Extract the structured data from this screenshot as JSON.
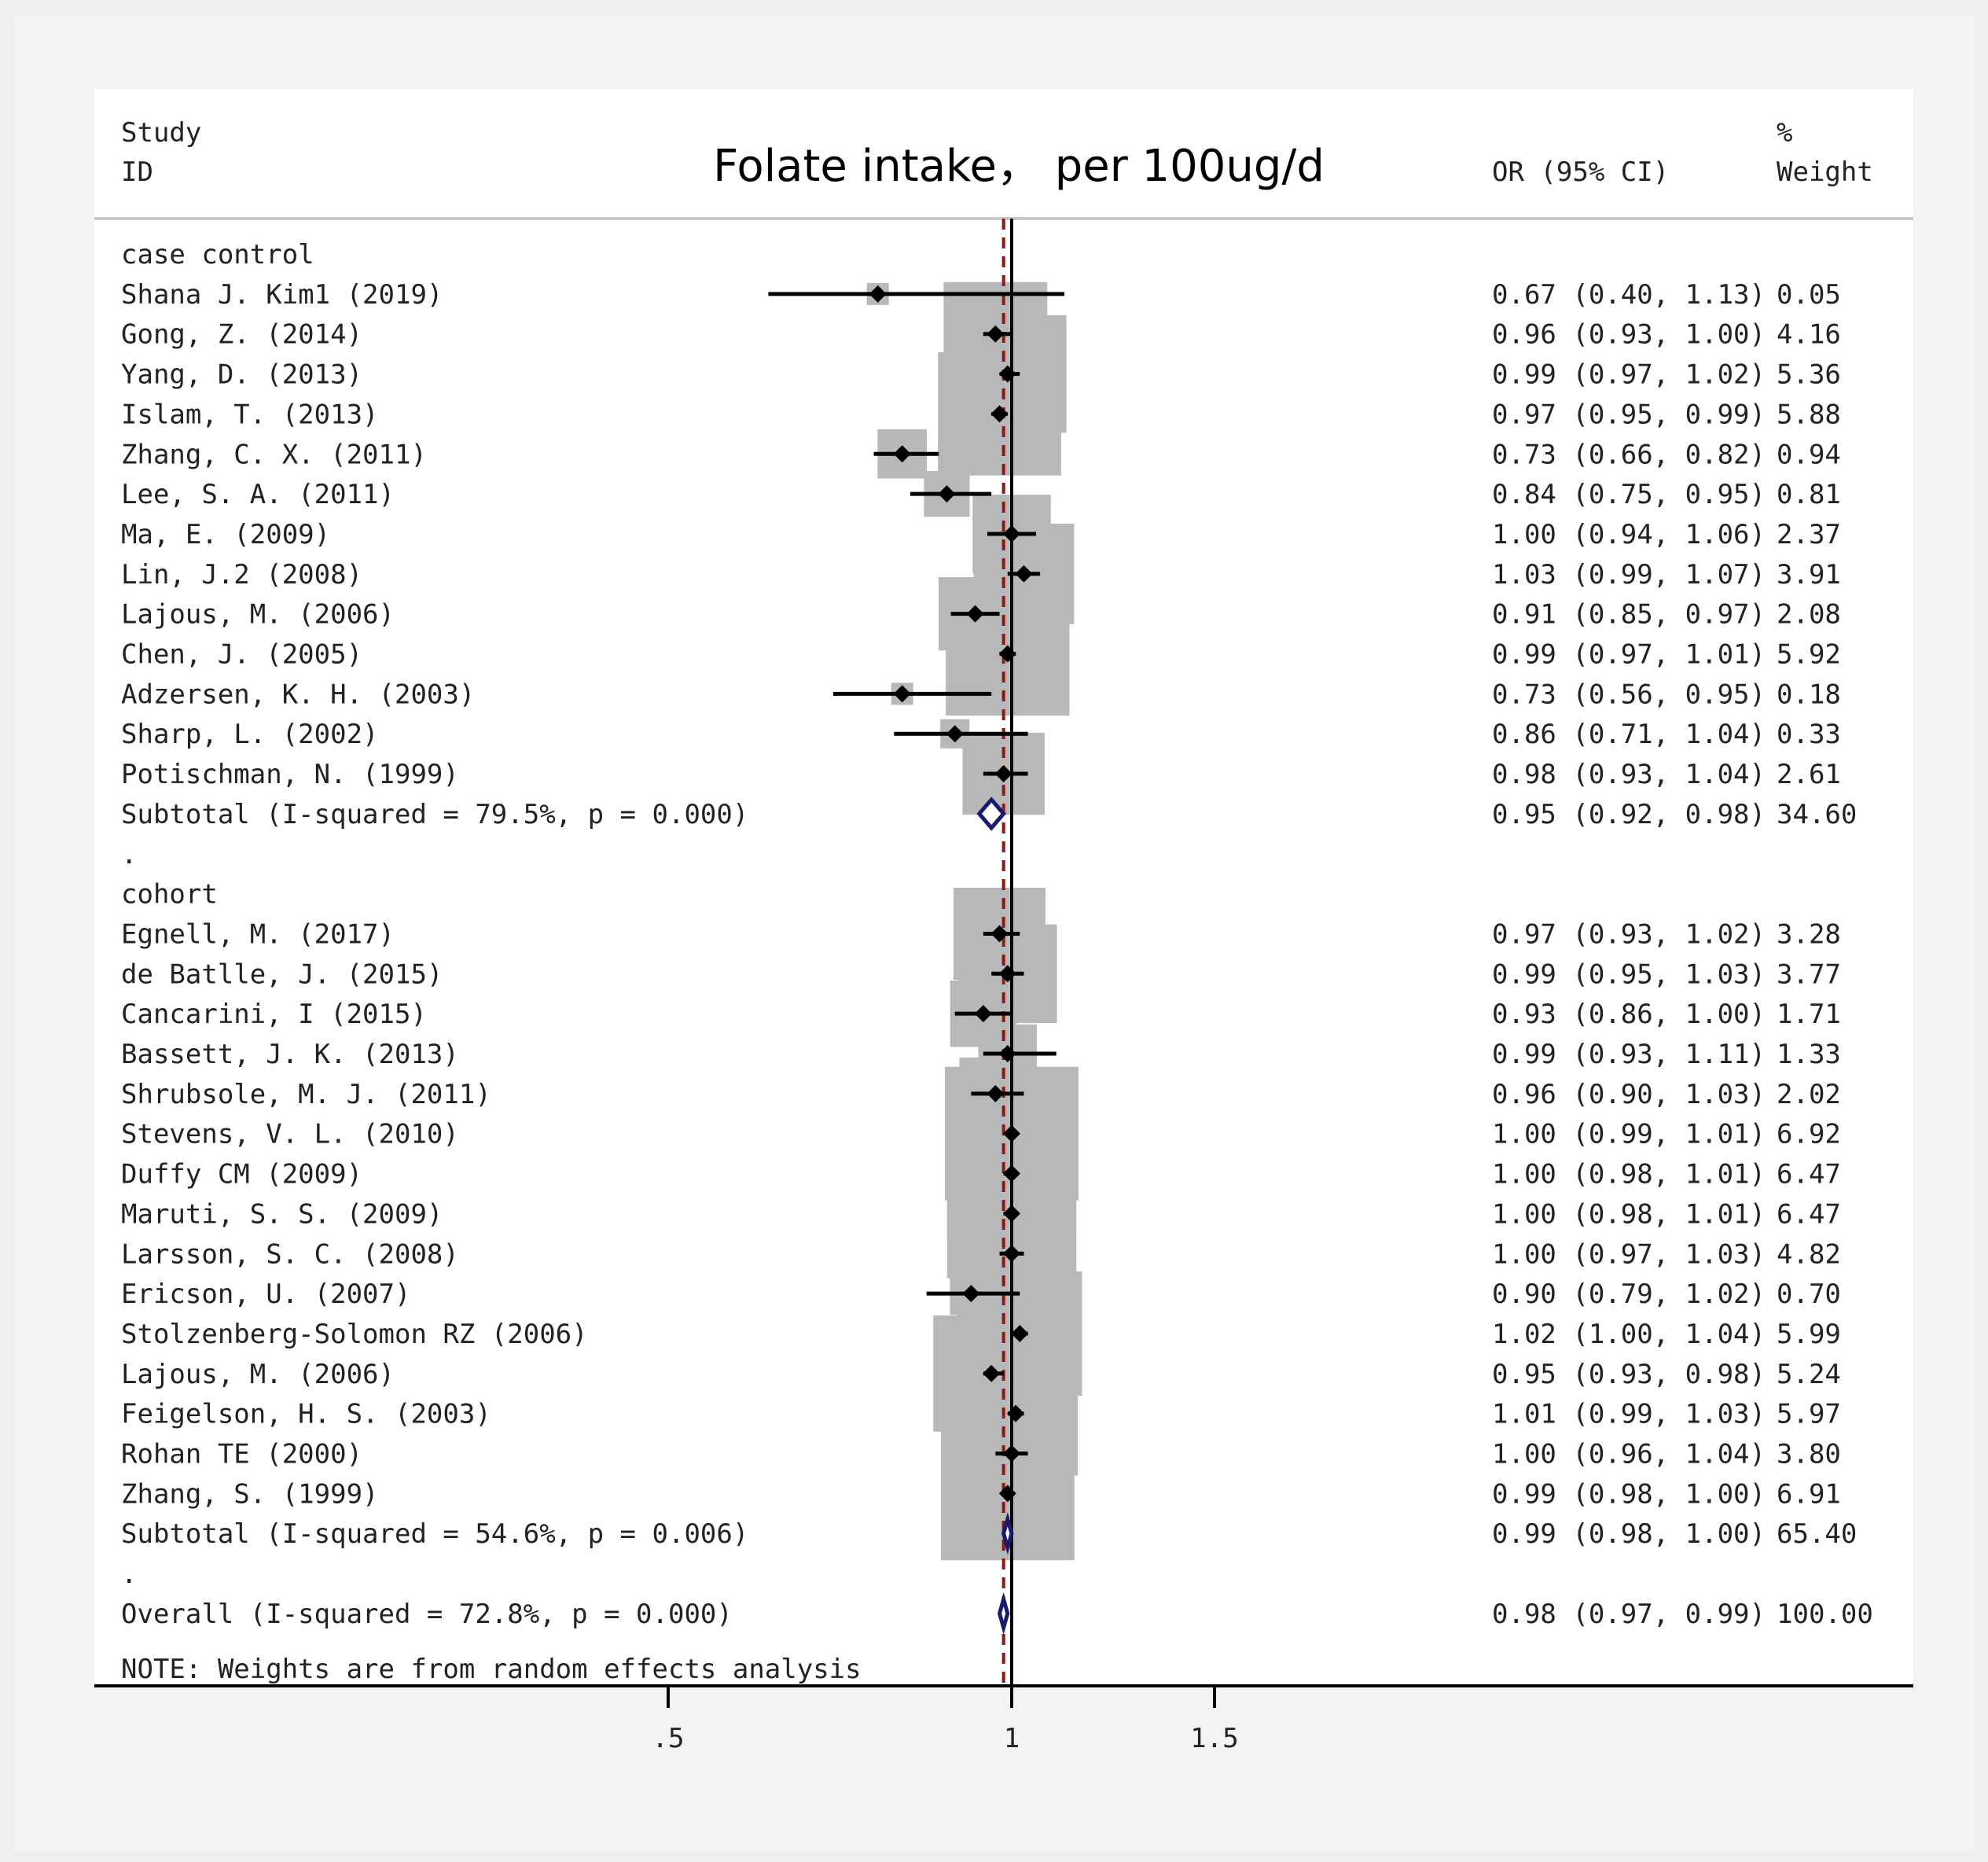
{
  "chart_data": {
    "type": "forest",
    "title": "Folate intake， per 100ug/d",
    "header": {
      "study_line1": "Study",
      "study_line2": "ID",
      "or_label": "OR (95% CI)",
      "weight_line1": "%",
      "weight_line2": "Weight"
    },
    "xlim": [
      0,
      1.6
    ],
    "xticks": [
      0.5,
      1,
      1.5
    ],
    "xtick_labels": [
      ".5",
      "1",
      "1.5"
    ],
    "null_value": 1,
    "overall_line_value": 0.98,
    "note": "NOTE: Weights are from random effects analysis",
    "rows": [
      {
        "kind": "group",
        "label": "case control"
      },
      {
        "kind": "study",
        "label": "Shana J. Kim1 (2019)",
        "or": 0.67,
        "lo": 0.4,
        "hi": 1.13,
        "weight": 0.05,
        "text": "0.67 (0.40, 1.13)",
        "wtext": "0.05"
      },
      {
        "kind": "study",
        "label": "Gong, Z. (2014)",
        "or": 0.96,
        "lo": 0.93,
        "hi": 1.0,
        "weight": 4.16,
        "text": "0.96 (0.93, 1.00)",
        "wtext": "4.16"
      },
      {
        "kind": "study",
        "label": "Yang, D. (2013)",
        "or": 0.99,
        "lo": 0.97,
        "hi": 1.02,
        "weight": 5.36,
        "text": "0.99 (0.97, 1.02)",
        "wtext": "5.36"
      },
      {
        "kind": "study",
        "label": "Islam, T. (2013)",
        "or": 0.97,
        "lo": 0.95,
        "hi": 0.99,
        "weight": 5.88,
        "text": "0.97 (0.95, 0.99)",
        "wtext": "5.88"
      },
      {
        "kind": "study",
        "label": "Zhang, C. X. (2011)",
        "or": 0.73,
        "lo": 0.66,
        "hi": 0.82,
        "weight": 0.94,
        "text": "0.73 (0.66, 0.82)",
        "wtext": "0.94"
      },
      {
        "kind": "study",
        "label": "Lee, S. A. (2011)",
        "or": 0.84,
        "lo": 0.75,
        "hi": 0.95,
        "weight": 0.81,
        "text": "0.84 (0.75, 0.95)",
        "wtext": "0.81"
      },
      {
        "kind": "study",
        "label": "Ma, E. (2009)",
        "or": 1.0,
        "lo": 0.94,
        "hi": 1.06,
        "weight": 2.37,
        "text": "1.00 (0.94, 1.06)",
        "wtext": "2.37"
      },
      {
        "kind": "study",
        "label": "Lin, J.2 (2008)",
        "or": 1.03,
        "lo": 0.99,
        "hi": 1.07,
        "weight": 3.91,
        "text": "1.03 (0.99, 1.07)",
        "wtext": "3.91"
      },
      {
        "kind": "study",
        "label": "Lajous, M. (2006)",
        "or": 0.91,
        "lo": 0.85,
        "hi": 0.97,
        "weight": 2.08,
        "text": "0.91 (0.85, 0.97)",
        "wtext": "2.08"
      },
      {
        "kind": "study",
        "label": "Chen, J. (2005)",
        "or": 0.99,
        "lo": 0.97,
        "hi": 1.01,
        "weight": 5.92,
        "text": "0.99 (0.97, 1.01)",
        "wtext": "5.92"
      },
      {
        "kind": "study",
        "label": "Adzersen, K. H. (2003)",
        "or": 0.73,
        "lo": 0.56,
        "hi": 0.95,
        "weight": 0.18,
        "text": "0.73 (0.56, 0.95)",
        "wtext": "0.18"
      },
      {
        "kind": "study",
        "label": "Sharp, L. (2002)",
        "or": 0.86,
        "lo": 0.71,
        "hi": 1.04,
        "weight": 0.33,
        "text": "0.86 (0.71, 1.04)",
        "wtext": "0.33"
      },
      {
        "kind": "study",
        "label": "Potischman, N. (1999)",
        "or": 0.98,
        "lo": 0.93,
        "hi": 1.04,
        "weight": 2.61,
        "text": "0.98 (0.93, 1.04)",
        "wtext": "2.61"
      },
      {
        "kind": "subtotal",
        "label": "Subtotal  (I-squared = 79.5%, p = 0.000)",
        "or": 0.95,
        "lo": 0.92,
        "hi": 0.98,
        "text": "0.95 (0.92, 0.98)",
        "wtext": "34.60"
      },
      {
        "kind": "dot",
        "label": "."
      },
      {
        "kind": "group",
        "label": "cohort"
      },
      {
        "kind": "study",
        "label": "Egnell, M. (2017)",
        "or": 0.97,
        "lo": 0.93,
        "hi": 1.02,
        "weight": 3.28,
        "text": "0.97 (0.93, 1.02)",
        "wtext": "3.28"
      },
      {
        "kind": "study",
        "label": "de Batlle, J. (2015)",
        "or": 0.99,
        "lo": 0.95,
        "hi": 1.03,
        "weight": 3.77,
        "text": "0.99 (0.95, 1.03)",
        "wtext": "3.77"
      },
      {
        "kind": "study",
        "label": "Cancarini, I (2015)",
        "or": 0.93,
        "lo": 0.86,
        "hi": 1.0,
        "weight": 1.71,
        "text": "0.93 (0.86, 1.00)",
        "wtext": "1.71"
      },
      {
        "kind": "study",
        "label": "Bassett, J. K. (2013)",
        "or": 0.99,
        "lo": 0.93,
        "hi": 1.11,
        "weight": 1.33,
        "text": "0.99 (0.93, 1.11)",
        "wtext": "1.33"
      },
      {
        "kind": "study",
        "label": "Shrubsole, M. J. (2011)",
        "or": 0.96,
        "lo": 0.9,
        "hi": 1.03,
        "weight": 2.02,
        "text": "0.96 (0.90, 1.03)",
        "wtext": "2.02"
      },
      {
        "kind": "study",
        "label": "Stevens, V. L. (2010)",
        "or": 1.0,
        "lo": 0.99,
        "hi": 1.01,
        "weight": 6.92,
        "text": "1.00 (0.99, 1.01)",
        "wtext": "6.92"
      },
      {
        "kind": "study",
        "label": "Duffy CM (2009)",
        "or": 1.0,
        "lo": 0.98,
        "hi": 1.01,
        "weight": 6.47,
        "text": "1.00 (0.98, 1.01)",
        "wtext": "6.47"
      },
      {
        "kind": "study",
        "label": "Maruti, S. S. (2009)",
        "or": 1.0,
        "lo": 0.98,
        "hi": 1.01,
        "weight": 6.47,
        "text": "1.00 (0.98, 1.01)",
        "wtext": "6.47"
      },
      {
        "kind": "study",
        "label": "Larsson, S. C. (2008)",
        "or": 1.0,
        "lo": 0.97,
        "hi": 1.03,
        "weight": 4.82,
        "text": "1.00 (0.97, 1.03)",
        "wtext": "4.82"
      },
      {
        "kind": "study",
        "label": "Ericson, U. (2007)",
        "or": 0.9,
        "lo": 0.79,
        "hi": 1.02,
        "weight": 0.7,
        "text": "0.90 (0.79, 1.02)",
        "wtext": "0.70"
      },
      {
        "kind": "study",
        "label": "Stolzenberg-Solomon RZ (2006)",
        "or": 1.02,
        "lo": 1.0,
        "hi": 1.04,
        "weight": 5.99,
        "text": "1.02 (1.00, 1.04)",
        "wtext": "5.99"
      },
      {
        "kind": "study",
        "label": "Lajous, M. (2006)",
        "or": 0.95,
        "lo": 0.93,
        "hi": 0.98,
        "weight": 5.24,
        "text": "0.95 (0.93, 0.98)",
        "wtext": "5.24"
      },
      {
        "kind": "study",
        "label": "Feigelson, H. S. (2003)",
        "or": 1.01,
        "lo": 0.99,
        "hi": 1.03,
        "weight": 5.97,
        "text": "1.01 (0.99, 1.03)",
        "wtext": "5.97"
      },
      {
        "kind": "study",
        "label": "Rohan TE (2000)",
        "or": 1.0,
        "lo": 0.96,
        "hi": 1.04,
        "weight": 3.8,
        "text": "1.00 (0.96, 1.04)",
        "wtext": "3.80"
      },
      {
        "kind": "study",
        "label": "Zhang, S. (1999)",
        "or": 0.99,
        "lo": 0.98,
        "hi": 1.0,
        "weight": 6.91,
        "text": "0.99 (0.98, 1.00)",
        "wtext": "6.91"
      },
      {
        "kind": "subtotal",
        "label": "Subtotal  (I-squared = 54.6%, p = 0.006)",
        "or": 0.99,
        "lo": 0.98,
        "hi": 1.0,
        "text": "0.99 (0.98, 1.00)",
        "wtext": "65.40"
      },
      {
        "kind": "dot",
        "label": "."
      },
      {
        "kind": "overall",
        "label": "Overall  (I-squared = 72.8%, p = 0.000)",
        "or": 0.98,
        "lo": 0.97,
        "hi": 0.99,
        "text": "0.98 (0.97, 0.99)",
        "wtext": "100.00"
      }
    ],
    "colors": {
      "box": "#b8b8b8",
      "point": "#000000",
      "subtotal_diamond": "#1a1a6e",
      "overall_line": "#8b1a1a",
      "text": "#222222"
    }
  }
}
